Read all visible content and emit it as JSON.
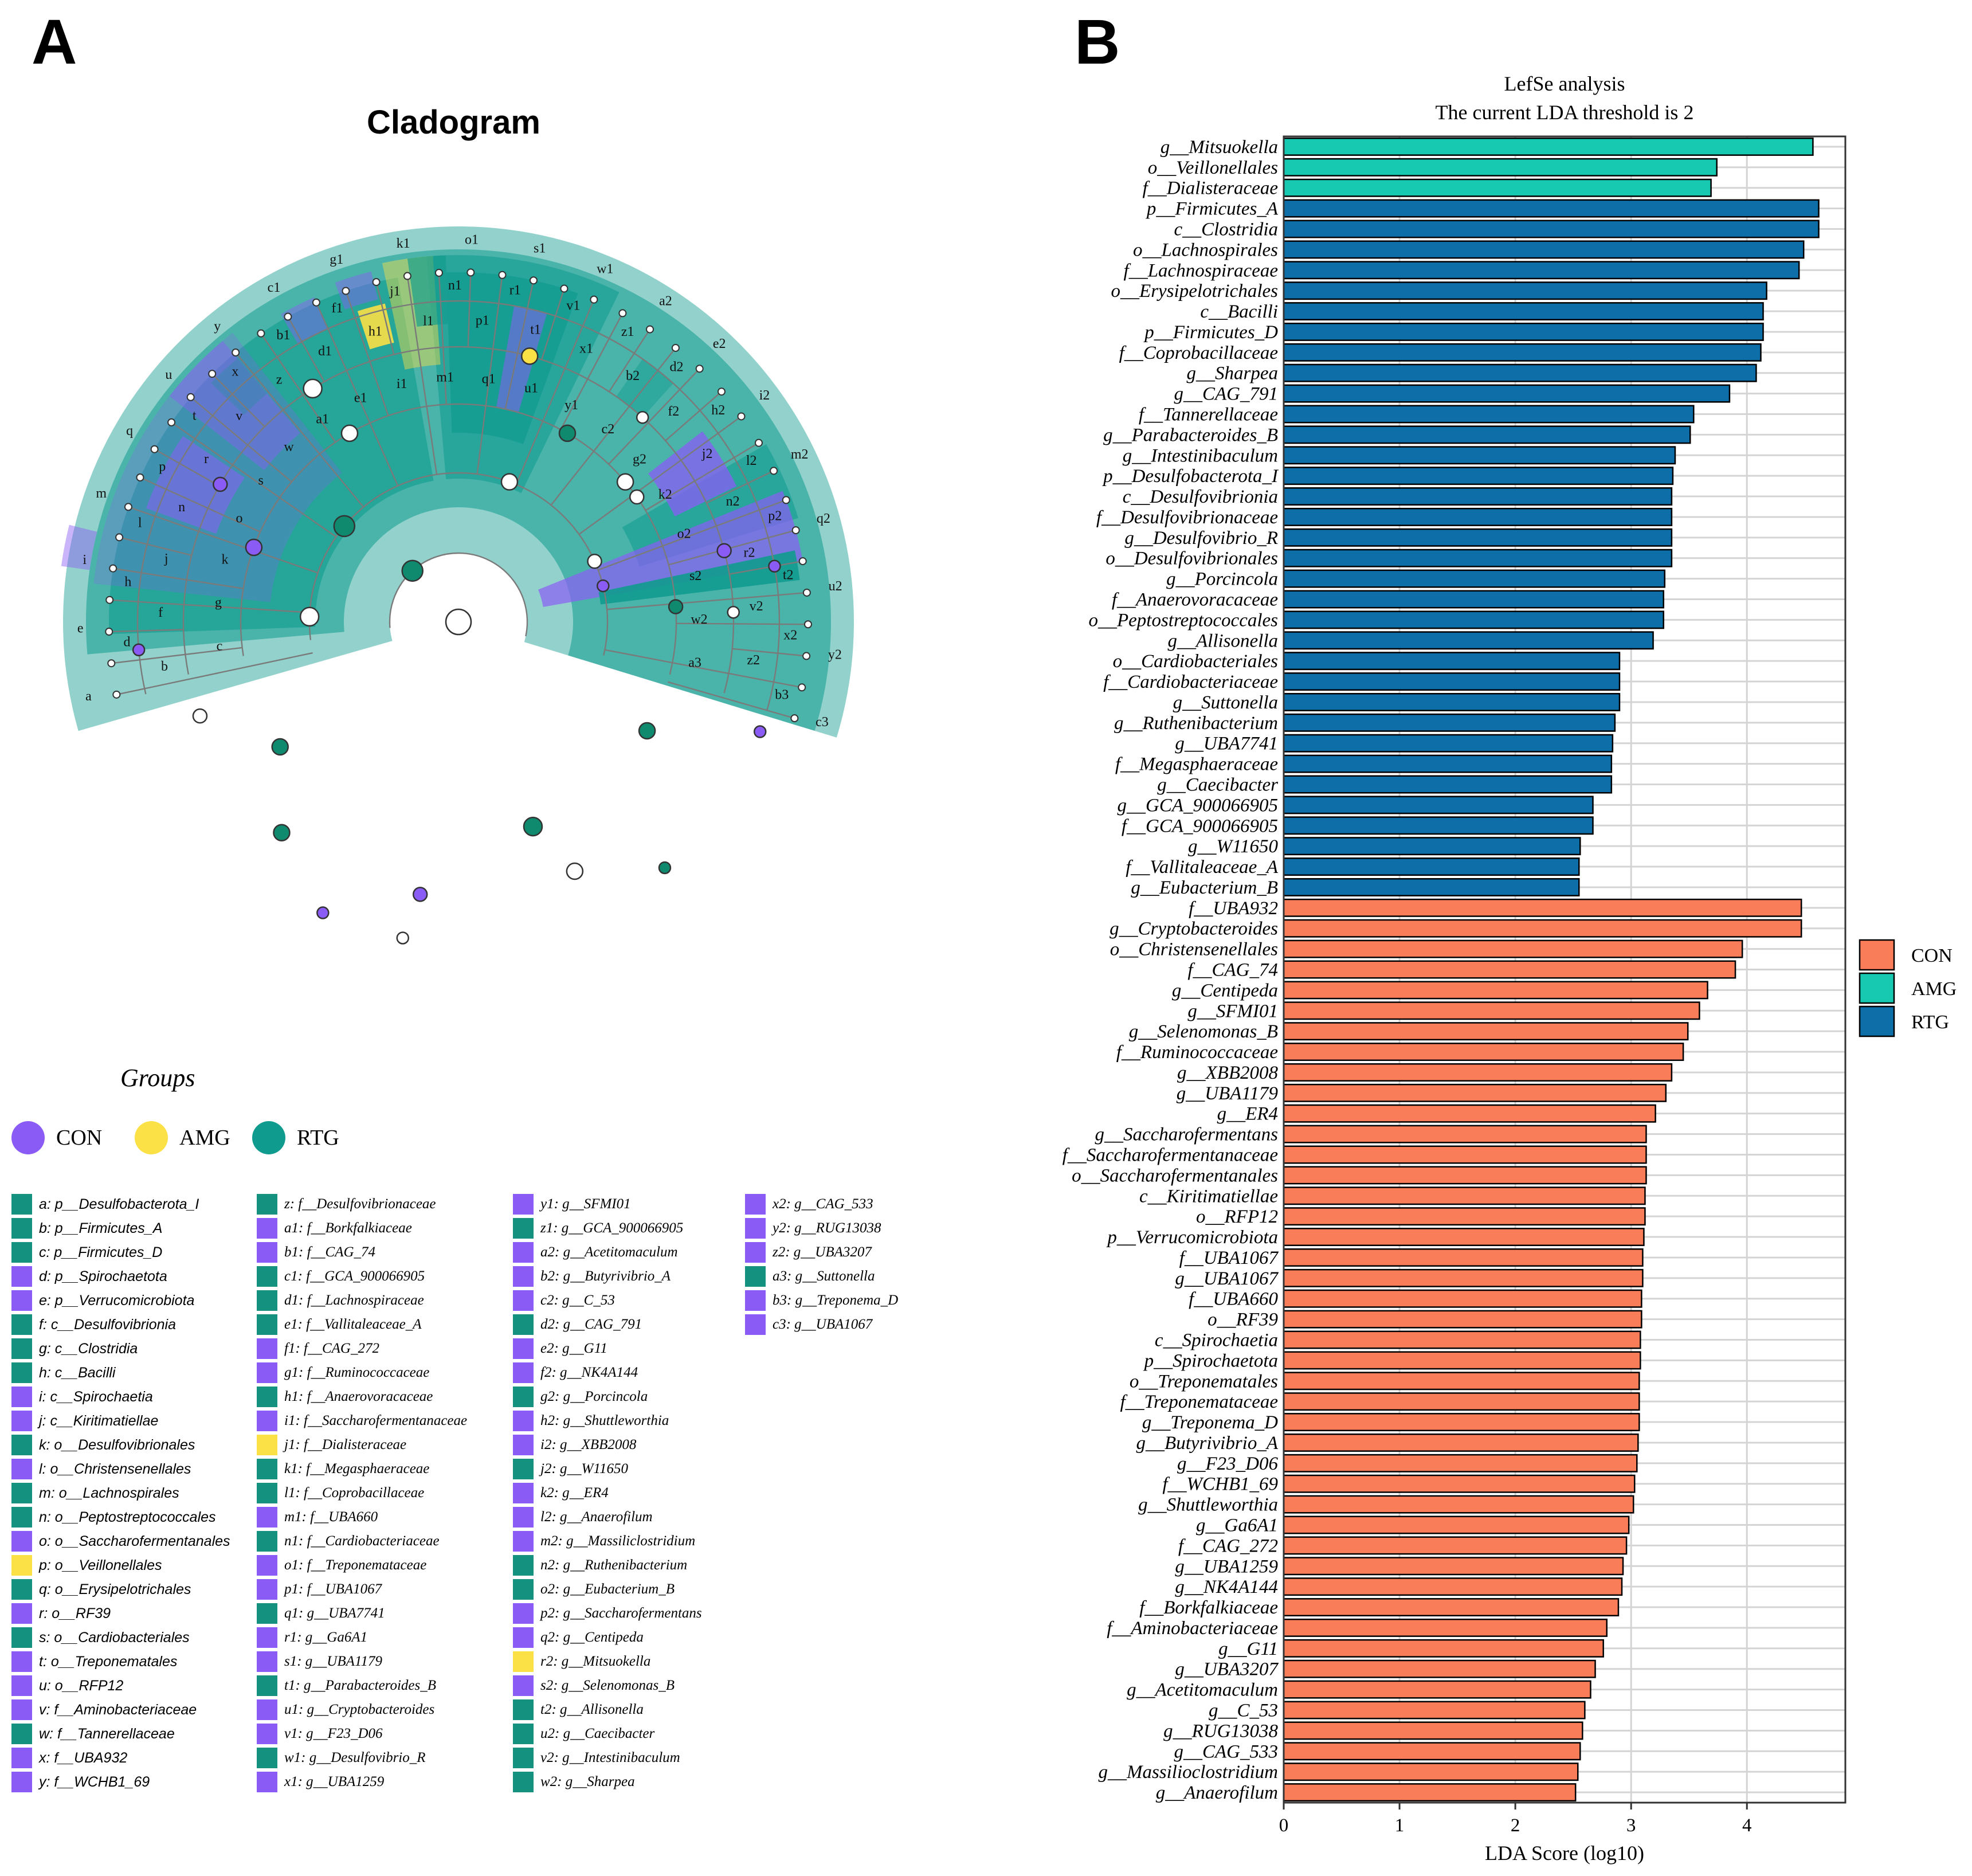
{
  "panels": {
    "a_label": "A",
    "b_label": "B"
  },
  "colors": {
    "CON": "#8a5cf5",
    "AMG": "#fbe046",
    "RTG": "#0f9b8e",
    "lda_CON": "#fa7d5a",
    "lda_AMG": "#16c9b0",
    "lda_RTG": "#0d6ea8"
  },
  "cladogram": {
    "title": "Cladogram",
    "groups_title": "Groups",
    "groups": [
      "CON",
      "AMG",
      "RTG"
    ],
    "node_labels": [
      "a",
      "b",
      "c",
      "d",
      "e",
      "f",
      "g",
      "h",
      "i",
      "j",
      "k",
      "l",
      "m",
      "n",
      "o",
      "p",
      "q",
      "r",
      "s",
      "t",
      "u",
      "v",
      "w",
      "x",
      "y",
      "z",
      "a1",
      "b1",
      "c1",
      "d1",
      "e1",
      "f1",
      "g1",
      "h1",
      "i1",
      "j1",
      "k1",
      "l1",
      "m1",
      "n1",
      "o1",
      "p1",
      "q1",
      "r1",
      "s1",
      "t1",
      "u1",
      "v1",
      "w1",
      "x1",
      "y1",
      "z1",
      "a2",
      "b2",
      "c2",
      "d2",
      "e2",
      "f2",
      "g2",
      "h2",
      "i2",
      "j2",
      "k2",
      "l2",
      "m2",
      "n2",
      "o2",
      "p2",
      "q2",
      "r2",
      "s2",
      "t2",
      "u2",
      "v2",
      "w2",
      "x2",
      "y2",
      "z2",
      "a3",
      "b3",
      "c3"
    ],
    "key": [
      [
        "a: p__Desulfobacterota_I",
        "RTG"
      ],
      [
        "b: p__Firmicutes_A",
        "RTG"
      ],
      [
        "c: p__Firmicutes_D",
        "RTG"
      ],
      [
        "d: p__Spirochaetota",
        "CON"
      ],
      [
        "e: p__Verrucomicrobiota",
        "CON"
      ],
      [
        "f: c__Desulfovibrionia",
        "RTG"
      ],
      [
        "g: c__Clostridia",
        "RTG"
      ],
      [
        "h: c__Bacilli",
        "RTG"
      ],
      [
        "i: c__Spirochaetia",
        "CON"
      ],
      [
        "j: c__Kiritimatiellae",
        "CON"
      ],
      [
        "k: o__Desulfovibrionales",
        "RTG"
      ],
      [
        "l: o__Christensenellales",
        "CON"
      ],
      [
        "m: o__Lachnospirales",
        "RTG"
      ],
      [
        "n: o__Peptostreptococcales",
        "RTG"
      ],
      [
        "o: o__Saccharofermentanales",
        "CON"
      ],
      [
        "p: o__Veillonellales",
        "AMG"
      ],
      [
        "q: o__Erysipelotrichales",
        "RTG"
      ],
      [
        "r: o__RF39",
        "CON"
      ],
      [
        "s: o__Cardiobacteriales",
        "RTG"
      ],
      [
        "t: o__Treponematales",
        "CON"
      ],
      [
        "u: o__RFP12",
        "CON"
      ],
      [
        "v: f__Aminobacteriaceae",
        "CON"
      ],
      [
        "w: f__Tannerellaceae",
        "RTG"
      ],
      [
        "x: f__UBA932",
        "CON"
      ],
      [
        "y: f__WCHB1_69",
        "CON"
      ],
      [
        "z: f__Desulfovibrionaceae",
        "RTG"
      ],
      [
        "a1: f__Borkfalkiaceae",
        "CON"
      ],
      [
        "b1: f__CAG_74",
        "CON"
      ],
      [
        "c1: f__GCA_900066905",
        "RTG"
      ],
      [
        "d1: f__Lachnospiraceae",
        "RTG"
      ],
      [
        "e1: f__Vallitaleaceae_A",
        "RTG"
      ],
      [
        "f1: f__CAG_272",
        "CON"
      ],
      [
        "g1: f__Ruminococcaceae",
        "CON"
      ],
      [
        "h1: f__Anaerovoracaceae",
        "RTG"
      ],
      [
        "i1: f__Saccharofermentanaceae",
        "CON"
      ],
      [
        "j1: f__Dialisteraceae",
        "AMG"
      ],
      [
        "k1: f__Megasphaeraceae",
        "RTG"
      ],
      [
        "l1: f__Coprobacillaceae",
        "RTG"
      ],
      [
        "m1: f__UBA660",
        "CON"
      ],
      [
        "n1: f__Cardiobacteriaceae",
        "RTG"
      ],
      [
        "o1: f__Treponemataceae",
        "CON"
      ],
      [
        "p1: f__UBA1067",
        "CON"
      ],
      [
        "q1: g__UBA7741",
        "RTG"
      ],
      [
        "r1: g__Ga6A1",
        "CON"
      ],
      [
        "s1: g__UBA1179",
        "CON"
      ],
      [
        "t1: g__Parabacteroides_B",
        "RTG"
      ],
      [
        "u1: g__Cryptobacteroides",
        "CON"
      ],
      [
        "v1: g__F23_D06",
        "CON"
      ],
      [
        "w1: g__Desulfovibrio_R",
        "RTG"
      ],
      [
        "x1: g__UBA1259",
        "CON"
      ],
      [
        "y1: g__SFMI01",
        "CON"
      ],
      [
        "z1: g__GCA_900066905",
        "RTG"
      ],
      [
        "a2: g__Acetitomaculum",
        "CON"
      ],
      [
        "b2: g__Butyrivibrio_A",
        "CON"
      ],
      [
        "c2: g__C_53",
        "CON"
      ],
      [
        "d2: g__CAG_791",
        "RTG"
      ],
      [
        "e2: g__G11",
        "CON"
      ],
      [
        "f2: g__NK4A144",
        "CON"
      ],
      [
        "g2: g__Porcincola",
        "RTG"
      ],
      [
        "h2: g__Shuttleworthia",
        "CON"
      ],
      [
        "i2: g__XBB2008",
        "CON"
      ],
      [
        "j2: g__W11650",
        "RTG"
      ],
      [
        "k2: g__ER4",
        "CON"
      ],
      [
        "l2: g__Anaerofilum",
        "CON"
      ],
      [
        "m2: g__Massiliclostridium",
        "CON"
      ],
      [
        "n2: g__Ruthenibacterium",
        "RTG"
      ],
      [
        "o2: g__Eubacterium_B",
        "RTG"
      ],
      [
        "p2: g__Saccharofermentans",
        "CON"
      ],
      [
        "q2: g__Centipeda",
        "CON"
      ],
      [
        "r2: g__Mitsuokella",
        "AMG"
      ],
      [
        "s2: g__Selenomonas_B",
        "CON"
      ],
      [
        "t2: g__Allisonella",
        "RTG"
      ],
      [
        "u2: g__Caecibacter",
        "RTG"
      ],
      [
        "v2: g__Intestinibaculum",
        "RTG"
      ],
      [
        "w2: g__Sharpea",
        "RTG"
      ],
      [
        "x2: g__CAG_533",
        "CON"
      ],
      [
        "y2: g__RUG13038",
        "CON"
      ],
      [
        "z2: g__UBA3207",
        "CON"
      ],
      [
        "a3: g__Suttonella",
        "RTG"
      ],
      [
        "b3: g__Treponema_D",
        "CON"
      ],
      [
        "c3: g__UBA1067",
        "CON"
      ]
    ]
  },
  "chart_data": {
    "type": "bar",
    "orientation": "horizontal",
    "title": "LefSe analysis",
    "subtitle": "The current LDA threshold is 2",
    "xlabel": "LDA Score (log10)",
    "ylabel": "",
    "xlim": [
      0,
      4.85
    ],
    "xticks": [
      0,
      1,
      2,
      3,
      4
    ],
    "legend_position": "right",
    "legend": [
      "CON",
      "AMG",
      "RTG"
    ],
    "categories": [
      "g__Mitsuokella",
      "o__Veillonellales",
      "f__Dialisteraceae",
      "p__Firmicutes_A",
      "c__Clostridia",
      "o__Lachnospirales",
      "f__Lachnospiraceae",
      "o__Erysipelotrichales",
      "c__Bacilli",
      "p__Firmicutes_D",
      "f__Coprobacillaceae",
      "g__Sharpea",
      "g__CAG_791",
      "f__Tannerellaceae",
      "g__Parabacteroides_B",
      "g__Intestinibaculum",
      "p__Desulfobacterota_I",
      "c__Desulfovibrionia",
      "f__Desulfovibrionaceae",
      "g__Desulfovibrio_R",
      "o__Desulfovibrionales",
      "g__Porcincola",
      "f__Anaerovoracaceae",
      "o__Peptostreptococcales",
      "g__Allisonella",
      "o__Cardiobacteriales",
      "f__Cardiobacteriaceae",
      "g__Suttonella",
      "g__Ruthenibacterium",
      "g__UBA7741",
      "f__Megasphaeraceae",
      "g__Caecibacter",
      "g__GCA_900066905",
      "f__GCA_900066905",
      "g__W11650",
      "f__Vallitaleaceae_A",
      "g__Eubacterium_B",
      "f__UBA932",
      "g__Cryptobacteroides",
      "o__Christensenellales",
      "f__CAG_74",
      "g__Centipeda",
      "g__SFMI01",
      "g__Selenomonas_B",
      "f__Ruminococcaceae",
      "g__XBB2008",
      "g__UBA1179",
      "g__ER4",
      "g__Saccharofermentans",
      "f__Saccharofermentanaceae",
      "o__Saccharofermentanales",
      "c__Kiritimatiellae",
      "o__RFP12",
      "p__Verrucomicrobiota",
      "f__UBA1067",
      "g__UBA1067",
      "f__UBA660",
      "o__RF39",
      "c__Spirochaetia",
      "p__Spirochaetota",
      "o__Treponematales",
      "f__Treponemataceae",
      "g__Treponema_D",
      "g__Butyrivibrio_A",
      "g__F23_D06",
      "f__WCHB1_69",
      "g__Shuttleworthia",
      "g__Ga6A1",
      "f__CAG_272",
      "g__UBA1259",
      "g__NK4A144",
      "f__Borkfalkiaceae",
      "f__Aminobacteriaceae",
      "g__G11",
      "g__UBA3207",
      "g__Acetitomaculum",
      "g__C_53",
      "g__RUG13038",
      "g__CAG_533",
      "g__Massilioclostridium",
      "g__Anaerofilum"
    ],
    "values": [
      4.57,
      3.74,
      3.69,
      4.62,
      4.62,
      4.49,
      4.45,
      4.17,
      4.14,
      4.14,
      4.12,
      4.08,
      3.85,
      3.54,
      3.51,
      3.38,
      3.36,
      3.35,
      3.35,
      3.35,
      3.35,
      3.29,
      3.28,
      3.28,
      3.19,
      2.9,
      2.9,
      2.9,
      2.86,
      2.84,
      2.83,
      2.83,
      2.67,
      2.67,
      2.56,
      2.55,
      2.55,
      4.47,
      4.47,
      3.96,
      3.9,
      3.66,
      3.59,
      3.49,
      3.45,
      3.35,
      3.3,
      3.21,
      3.13,
      3.13,
      3.13,
      3.12,
      3.12,
      3.11,
      3.1,
      3.1,
      3.09,
      3.09,
      3.08,
      3.08,
      3.07,
      3.07,
      3.07,
      3.06,
      3.05,
      3.03,
      3.02,
      2.98,
      2.96,
      2.93,
      2.92,
      2.89,
      2.79,
      2.76,
      2.69,
      2.65,
      2.6,
      2.58,
      2.56,
      2.54,
      2.52
    ],
    "groups": [
      "AMG",
      "AMG",
      "AMG",
      "RTG",
      "RTG",
      "RTG",
      "RTG",
      "RTG",
      "RTG",
      "RTG",
      "RTG",
      "RTG",
      "RTG",
      "RTG",
      "RTG",
      "RTG",
      "RTG",
      "RTG",
      "RTG",
      "RTG",
      "RTG",
      "RTG",
      "RTG",
      "RTG",
      "RTG",
      "RTG",
      "RTG",
      "RTG",
      "RTG",
      "RTG",
      "RTG",
      "RTG",
      "RTG",
      "RTG",
      "RTG",
      "RTG",
      "RTG",
      "CON",
      "CON",
      "CON",
      "CON",
      "CON",
      "CON",
      "CON",
      "CON",
      "CON",
      "CON",
      "CON",
      "CON",
      "CON",
      "CON",
      "CON",
      "CON",
      "CON",
      "CON",
      "CON",
      "CON",
      "CON",
      "CON",
      "CON",
      "CON",
      "CON",
      "CON",
      "CON",
      "CON",
      "CON",
      "CON",
      "CON",
      "CON",
      "CON",
      "CON",
      "CON",
      "CON",
      "CON",
      "CON",
      "CON",
      "CON",
      "CON",
      "CON",
      "CON",
      "CON"
    ]
  }
}
